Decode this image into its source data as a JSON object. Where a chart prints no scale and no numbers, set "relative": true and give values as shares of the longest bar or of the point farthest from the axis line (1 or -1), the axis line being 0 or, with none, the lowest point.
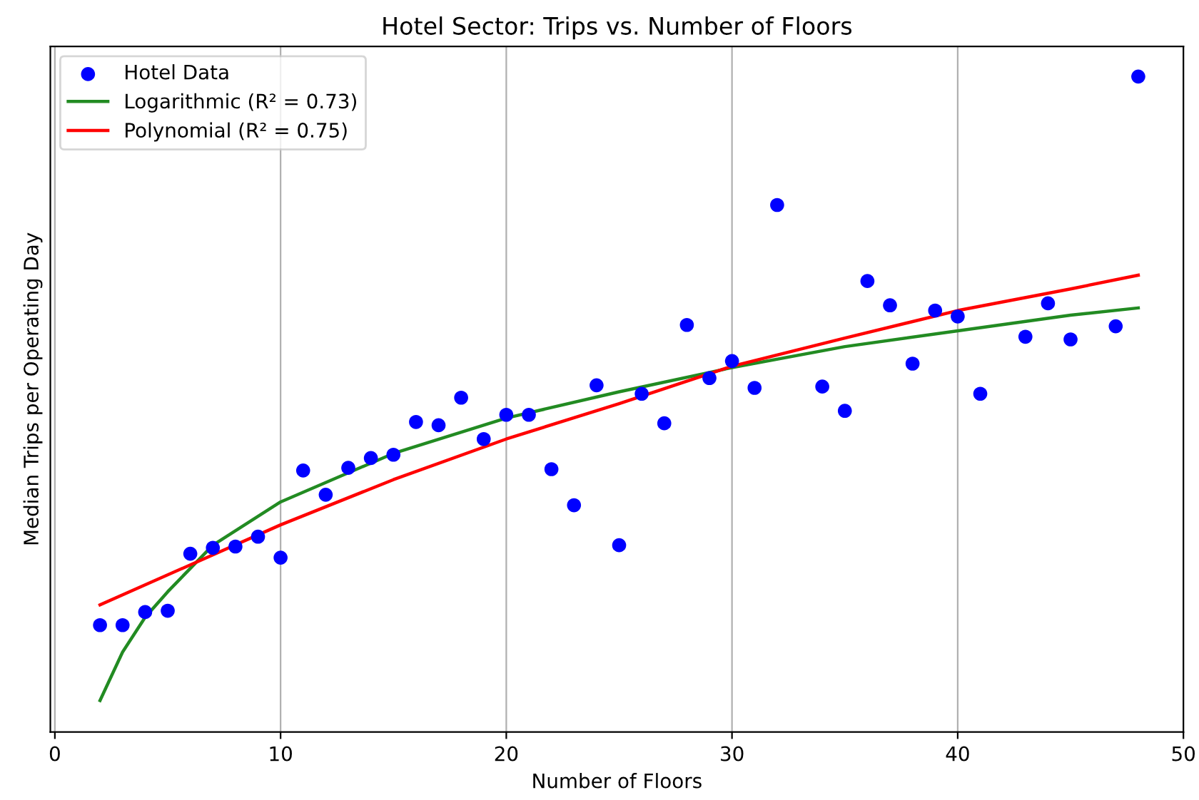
{
  "chart_data": {
    "type": "scatter",
    "title": "Hotel Sector: Trips vs. Number of Floors",
    "xlabel": "Number of Floors",
    "ylabel": "Median Trips per Operating Day",
    "relative": true,
    "xlim": [
      -0.2,
      50
    ],
    "xticks": [
      0,
      10,
      20,
      30,
      40,
      50
    ],
    "grid": "x",
    "legend": "top left",
    "tick_labels": "x",
    "series": [
      {
        "name": "Hotel Data",
        "color": "#0000ff",
        "marker": "circle",
        "x": [
          2,
          3,
          4,
          5,
          6,
          7,
          8,
          9,
          10,
          11,
          12,
          13,
          14,
          15,
          16,
          17,
          18,
          19,
          20,
          21,
          22,
          23,
          24,
          25,
          26,
          27,
          28,
          29,
          30,
          31,
          32,
          34,
          35,
          36,
          37,
          38,
          39,
          40,
          41,
          43,
          44,
          45,
          47,
          48
        ],
        "values": [
          0.163,
          0.163,
          0.183,
          0.185,
          0.272,
          0.281,
          0.283,
          0.298,
          0.266,
          0.399,
          0.362,
          0.403,
          0.418,
          0.423,
          0.473,
          0.468,
          0.51,
          0.447,
          0.484,
          0.484,
          0.401,
          0.346,
          0.529,
          0.285,
          0.516,
          0.471,
          0.621,
          0.54,
          0.566,
          0.525,
          0.804,
          0.527,
          0.49,
          0.688,
          0.651,
          0.562,
          0.643,
          0.634,
          0.516,
          0.603,
          0.654,
          0.599,
          0.619,
          1
        ]
      },
      {
        "name": "Logarithmic (R² = 0.73)",
        "type": "line",
        "color": "#228b22",
        "line_style": "solid",
        "x": [
          2,
          3,
          4,
          5,
          7,
          10,
          15,
          20,
          25,
          30,
          35,
          40,
          45,
          48
        ],
        "values": [
          0.048,
          0.122,
          0.175,
          0.214,
          0.285,
          0.351,
          0.425,
          0.479,
          0.519,
          0.556,
          0.588,
          0.612,
          0.636,
          0.647
        ]
      },
      {
        "name": "Polynomial (R² = 0.75)",
        "type": "line",
        "color": "#ff0000",
        "line_style": "solid",
        "x": [
          2,
          10,
          15,
          20,
          25,
          30,
          35,
          40,
          45,
          48
        ],
        "values": [
          0.194,
          0.316,
          0.385,
          0.447,
          0.501,
          0.558,
          0.601,
          0.643,
          0.676,
          0.697
        ]
      }
    ]
  }
}
